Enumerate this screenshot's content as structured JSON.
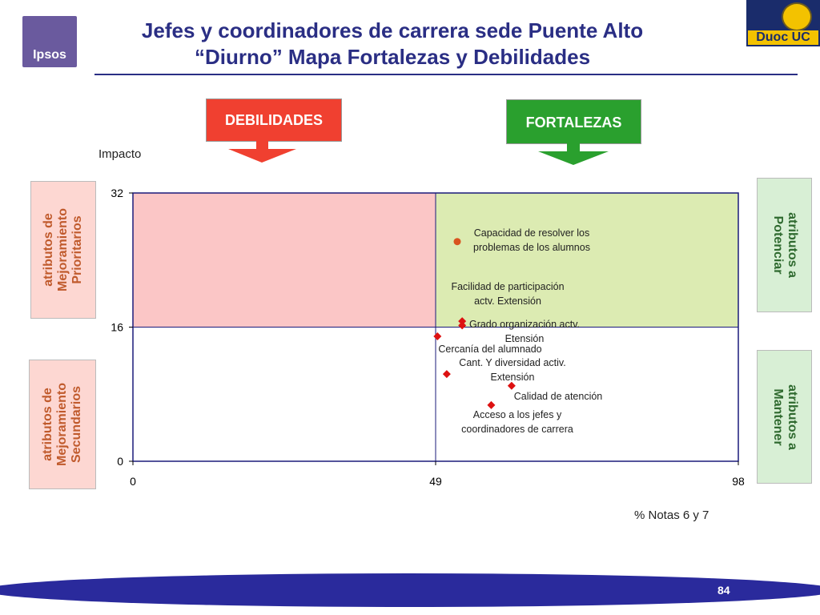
{
  "title_line1": "Jefes y coordinadores de carrera sede Puente Alto",
  "title_line2": "“Diurno” Mapa Fortalezas y Debilidades",
  "logos": {
    "left": "Ipsos",
    "right": "Duoc UC"
  },
  "header_left": "DEBILIDADES",
  "header_right": "FORTALEZAS",
  "side_labels": {
    "left_top": [
      "atributos de",
      "Mejoramiento",
      "Prioritarios"
    ],
    "left_bottom": [
      "atributos de",
      "Mejoramiento",
      "Secundarios"
    ],
    "right_top": [
      "atributos a",
      "Potenciar"
    ],
    "right_bottom": [
      "atributos a",
      "Mantener"
    ]
  },
  "page_number": "84",
  "colors": {
    "title": "#2a2e84",
    "debilidades": "#f04030",
    "fortalezas": "#2aa02e",
    "quadrant_weak": "#fbc6c6",
    "quadrant_strong": "#dcebb2",
    "marker": "#dd1111",
    "marker_top": "#d9531e"
  },
  "chart_data": {
    "type": "scatter",
    "xlabel": "% Notas 6 y 7",
    "ylabel": "Impacto",
    "xlim": [
      0,
      98
    ],
    "ylim": [
      0,
      32
    ],
    "xticks": [
      "0",
      "49",
      "98"
    ],
    "yticks": [
      "0",
      "16",
      "32"
    ],
    "x_divider": 49,
    "y_divider": 16,
    "points": [
      {
        "label_lines": [
          "Capacidad de resolver los",
          "problemas de los alumnos"
        ],
        "x": 52.5,
        "y": 26.2,
        "shape": "circle"
      },
      {
        "label_lines": [
          "Facilidad de participación",
          "actv. Extensión"
        ],
        "x": 53.3,
        "y": 16.7,
        "shape": "diamond"
      },
      {
        "label_lines": [
          "Grado organización actv.",
          "Etensión"
        ],
        "x": 53.3,
        "y": 16.2,
        "shape": "diamond"
      },
      {
        "label_lines": [
          "Cercanía del alumnado"
        ],
        "x": 49.3,
        "y": 14.9,
        "shape": "diamond"
      },
      {
        "label_lines": [
          "Cant. Y diversidad activ.",
          "Extensión"
        ],
        "x": 50.8,
        "y": 10.4,
        "shape": "diamond"
      },
      {
        "label_lines": [
          "Calidad de atención"
        ],
        "x": 61.3,
        "y": 9.0,
        "shape": "diamond"
      },
      {
        "label_lines": [
          "Acceso a los jefes y",
          "coordinadores de carrera"
        ],
        "x": 58.0,
        "y": 6.7,
        "shape": "diamond"
      }
    ]
  }
}
